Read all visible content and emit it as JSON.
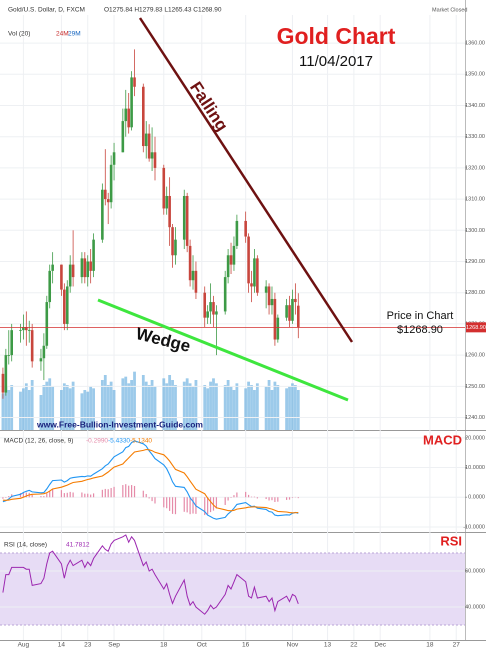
{
  "header": {
    "symbol": "Gold/U.S. Dollar, D, FXCM",
    "ohlc": "O1275.84 H1279.83 L1265.43 C1268.90",
    "status": "Market Closed",
    "volume_label": "Vol (20)",
    "volume_values": [
      "24M",
      "29M"
    ]
  },
  "annotations": {
    "title": "Gold Chart",
    "date": "11/04/2017",
    "falling": "Falling",
    "wedge": "Wedge",
    "price_label": "Price in Chart",
    "price_value": "$1268.90",
    "website": "www.Free-Bullion-Investment-Guide.com"
  },
  "chart_data": [
    {
      "type": "candlestick",
      "up_color": "#3d9a46",
      "down_color": "#c8463d",
      "grid": true,
      "xlim": [
        "2017-07-24",
        "2017-12-30"
      ],
      "x": [
        "2017-07-25",
        "2017-07-26",
        "2017-07-27",
        "2017-07-28",
        "2017-07-31",
        "2017-08-01",
        "2017-08-02",
        "2017-08-03",
        "2017-08-04",
        "2017-08-07",
        "2017-08-08",
        "2017-08-09",
        "2017-08-10",
        "2017-08-11",
        "2017-08-14",
        "2017-08-15",
        "2017-08-16",
        "2017-08-17",
        "2017-08-18",
        "2017-08-21",
        "2017-08-22",
        "2017-08-23",
        "2017-08-24",
        "2017-08-25",
        "2017-08-28",
        "2017-08-29",
        "2017-08-30",
        "2017-08-31",
        "2017-09-01",
        "2017-09-04",
        "2017-09-05",
        "2017-09-06",
        "2017-09-07",
        "2017-09-08",
        "2017-09-11",
        "2017-09-12",
        "2017-09-13",
        "2017-09-14",
        "2017-09-15",
        "2017-09-18",
        "2017-09-19",
        "2017-09-20",
        "2017-09-21",
        "2017-09-22",
        "2017-09-25",
        "2017-09-26",
        "2017-09-27",
        "2017-09-28",
        "2017-09-29",
        "2017-10-02",
        "2017-10-03",
        "2017-10-04",
        "2017-10-05",
        "2017-10-06",
        "2017-10-09",
        "2017-10-10",
        "2017-10-11",
        "2017-10-12",
        "2017-10-13",
        "2017-10-16",
        "2017-10-17",
        "2017-10-18",
        "2017-10-19",
        "2017-10-20",
        "2017-10-23",
        "2017-10-24",
        "2017-10-25",
        "2017-10-26",
        "2017-10-27",
        "2017-10-30",
        "2017-10-31",
        "2017-11-01",
        "2017-11-02",
        "2017-11-03"
      ],
      "open": [
        1254,
        1248,
        1260,
        1260,
        1268,
        1268,
        1269,
        1268,
        1268,
        1258,
        1259,
        1263,
        1277,
        1287,
        1289,
        1281,
        1270,
        1282,
        1289,
        1285,
        1291,
        1285,
        1290,
        1287,
        1297,
        1313,
        1310,
        1309,
        1321,
        1325,
        1335,
        1339,
        1333,
        1349,
        1346,
        1327,
        1331,
        1323,
        1325,
        1320,
        1307,
        1311,
        1301,
        1292,
        1297,
        1311,
        1295,
        1284,
        1287,
        1280,
        1272,
        1274,
        1277,
        1273,
        1274,
        1285,
        1292,
        1289,
        1295,
        1303,
        1298,
        1283,
        1282,
        1291,
        1280,
        1282,
        1276,
        1278,
        1265,
        1272,
        1276,
        1271,
        1278,
        1275.84
      ],
      "high": [
        1256,
        1262,
        1268,
        1270,
        1270,
        1273,
        1274,
        1271,
        1270,
        1262,
        1267,
        1279,
        1289,
        1293,
        1289,
        1283,
        1284,
        1292,
        1300,
        1293,
        1293,
        1292,
        1294,
        1299,
        1315,
        1326,
        1312,
        1324,
        1328,
        1339,
        1345,
        1344,
        1351,
        1358,
        1347,
        1335,
        1334,
        1333,
        1330,
        1321,
        1314,
        1317,
        1302,
        1301,
        1313,
        1312,
        1297,
        1292,
        1290,
        1282,
        1276,
        1283,
        1279,
        1276,
        1287,
        1294,
        1296,
        1298,
        1305,
        1306,
        1299,
        1287,
        1294,
        1292,
        1284,
        1283,
        1282,
        1280,
        1273,
        1278,
        1279,
        1281,
        1283,
        1279.83
      ],
      "low": [
        1246,
        1247,
        1257,
        1258,
        1264,
        1265,
        1263,
        1264,
        1256,
        1255,
        1252,
        1262,
        1275,
        1283,
        1279,
        1268,
        1268,
        1280,
        1282,
        1283,
        1283,
        1282,
        1283,
        1285,
        1296,
        1308,
        1302,
        1307,
        1316,
        1325,
        1330,
        1331,
        1332,
        1343,
        1325,
        1323,
        1322,
        1319,
        1316,
        1305,
        1305,
        1295,
        1288,
        1289,
        1294,
        1293,
        1282,
        1281,
        1278,
        1269,
        1270,
        1270,
        1269,
        1260,
        1273,
        1283,
        1286,
        1287,
        1294,
        1296,
        1280,
        1277,
        1280,
        1279,
        1275,
        1273,
        1273,
        1263,
        1264,
        1271,
        1269,
        1270,
        1273,
        1265.43
      ],
      "close": [
        1248,
        1260,
        1260,
        1268,
        1268,
        1269,
        1268,
        1268,
        1258,
        1259,
        1263,
        1277,
        1287,
        1289,
        1281,
        1270,
        1282,
        1289,
        1285,
        1291,
        1285,
        1290,
        1287,
        1297,
        1313,
        1310,
        1309,
        1321,
        1325,
        1335,
        1339,
        1333,
        1349,
        1346,
        1327,
        1331,
        1323,
        1325,
        1320,
        1307,
        1311,
        1301,
        1292,
        1297,
        1311,
        1295,
        1284,
        1287,
        1280,
        1272,
        1274,
        1277,
        1273,
        1274,
        1285,
        1292,
        1289,
        1295,
        1303,
        1298,
        1283,
        1282,
        1291,
        1280,
        1282,
        1276,
        1278,
        1265,
        1272,
        1276,
        1271,
        1278,
        1277,
        1268.9
      ],
      "ylim": [
        1236,
        1369
      ],
      "yticks": [
        {
          "value": 1240,
          "label": "1240.00"
        },
        {
          "value": 1250,
          "label": "1250.00"
        },
        {
          "value": 1260,
          "label": "1260.00"
        },
        {
          "value": 1270,
          "label": "1270.00"
        },
        {
          "value": 1280,
          "label": "1280.00"
        },
        {
          "value": 1290,
          "label": "1290.00"
        },
        {
          "value": 1300,
          "label": "1300.00"
        },
        {
          "value": 1310,
          "label": "1310.00"
        },
        {
          "value": 1320,
          "label": "1320.00"
        },
        {
          "value": 1330,
          "label": "1330.00"
        },
        {
          "value": 1340,
          "label": "1340.00"
        },
        {
          "value": 1350,
          "label": "1350.00"
        },
        {
          "value": 1360,
          "label": "1360.00"
        }
      ],
      "price_line": {
        "value": 1268.9,
        "label": "1268.90",
        "color": "#d32f2f"
      }
    },
    {
      "type": "bar",
      "color": "#4a9fd8",
      "values": [
        22,
        26,
        24,
        27,
        23,
        25,
        28,
        24,
        30,
        21,
        27,
        29,
        31,
        26,
        24,
        28,
        27,
        25,
        29,
        22,
        24,
        23,
        26,
        25,
        30,
        33,
        27,
        29,
        24,
        31,
        32,
        28,
        30,
        35,
        33,
        29,
        27,
        30,
        26,
        31,
        28,
        33,
        30,
        27,
        29,
        31,
        28,
        26,
        30,
        27,
        25,
        29,
        31,
        28,
        27,
        30,
        26,
        24,
        28,
        25,
        29,
        27,
        24,
        28,
        26,
        30,
        24,
        29,
        27,
        25,
        26,
        28,
        27,
        24
      ],
      "vlim": [
        0,
        60
      ]
    },
    {
      "type": "macd",
      "title": "MACD",
      "indicator_label": "MACD (12, 26, close, 9)",
      "indicator_values": [
        "-0.2990",
        "-5.4330",
        "-5.1340"
      ],
      "ylim": [
        -11.7,
        22.3
      ],
      "yticks": [
        {
          "value": 20,
          "label": "20.0000"
        },
        {
          "value": 10,
          "label": "10.0000"
        },
        {
          "value": 0,
          "label": "0.0000"
        },
        {
          "value": -10,
          "label": "-10.0000"
        }
      ],
      "histogram": {
        "color": "#e58aa8",
        "values": [
          -0.5,
          -0.2,
          0.4,
          1.0,
          1.4,
          1.6,
          1.6,
          1.5,
          0.8,
          0.4,
          0.4,
          1.3,
          2.2,
          2.8,
          2.4,
          1.4,
          1.5,
          1.8,
          1.6,
          1.6,
          1.2,
          1.2,
          0.9,
          1.3,
          2.5,
          2.8,
          2.7,
          3.1,
          3.5,
          4.1,
          4.4,
          3.9,
          4.1,
          3.8,
          2.2,
          1.1,
          -0.4,
          -1.3,
          -2.1,
          -3.4,
          -3.7,
          -4.6,
          -5.6,
          -5.7,
          -4.9,
          -5.1,
          -5.7,
          -5.5,
          -5.6,
          -6.0,
          -5.8,
          -5.0,
          -4.5,
          -3.8,
          -2.6,
          -1.1,
          -0.2,
          0.7,
          1.6,
          1.8,
          0.8,
          0.2,
          0.2,
          -0.4,
          -0.6,
          -1.1,
          -1.0,
          -1.6,
          -1.5,
          -0.9,
          -0.8,
          -0.2,
          0.1,
          -0.299
        ]
      },
      "series": [
        {
          "color": "#2196f3",
          "values": [
            -1.5,
            -1.2,
            -0.6,
            0.3,
            1.0,
            1.6,
            2.0,
            2.3,
            1.8,
            1.5,
            1.6,
            2.8,
            4.3,
            5.6,
            5.8,
            5.1,
            5.6,
            6.4,
            6.6,
            7.0,
            6.9,
            7.2,
            7.1,
            7.8,
            9.6,
            10.6,
            11.2,
            12.4,
            13.6,
            15.3,
            16.7,
            17.1,
            18.4,
            19.0,
            18.0,
            17.2,
            15.6,
            14.4,
            13.0,
            10.9,
            9.6,
            7.6,
            5.2,
            3.7,
            3.3,
            1.8,
            -0.2,
            -1.4,
            -2.9,
            -4.8,
            -6.0,
            -6.5,
            -7.1,
            -7.4,
            -6.8,
            -5.6,
            -4.8,
            -3.7,
            -2.4,
            -1.8,
            -2.5,
            -3.1,
            -3.0,
            -3.7,
            -4.1,
            -4.8,
            -5.0,
            -6.0,
            -6.2,
            -5.9,
            -6.0,
            -5.4,
            -5.1,
            -5.433
          ]
        },
        {
          "color": "#f57c00",
          "values": [
            -1.0,
            -1.04,
            -0.95,
            -0.7,
            -0.36,
            0.03,
            0.42,
            0.8,
            1.0,
            1.1,
            1.2,
            1.5,
            2.06,
            2.77,
            3.38,
            3.72,
            4.1,
            4.56,
            4.97,
            5.38,
            5.68,
            5.98,
            6.2,
            6.52,
            7.14,
            7.83,
            8.51,
            9.29,
            10.15,
            11.18,
            12.28,
            13.24,
            14.27,
            15.22,
            15.78,
            16.06,
            15.97,
            15.66,
            15.13,
            14.28,
            13.34,
            12.19,
            10.79,
            9.37,
            8.16,
            6.89,
            5.47,
            4.1,
            2.7,
            1.2,
            -0.24,
            -1.49,
            -2.61,
            -3.57,
            -4.22,
            -4.5,
            -4.56,
            -4.39,
            -3.99,
            -3.55,
            -3.34,
            -3.29,
            -3.23,
            -3.33,
            -3.48,
            -3.74,
            -3.99,
            -4.39,
            -4.75,
            -4.98,
            -5.18,
            -5.23,
            -5.2,
            -5.134
          ]
        }
      ]
    },
    {
      "type": "rsi",
      "title": "RSI",
      "indicator_label": "RSI (14, close)",
      "indicator_values": [
        "41.7812"
      ],
      "ylim": [
        21.7,
        81.1
      ],
      "band": [
        30,
        70
      ],
      "band_color": "#e7dcf5",
      "color": "#9c27b0",
      "yticks": [
        {
          "value": 60,
          "label": "60.0000"
        },
        {
          "value": 40,
          "label": "40.0000"
        }
      ],
      "values": [
        48,
        58,
        58,
        62,
        62,
        62,
        61,
        61,
        52,
        53,
        56,
        64,
        70,
        71,
        64,
        56,
        63,
        66,
        63,
        66,
        62,
        65,
        63,
        67,
        74,
        72,
        71,
        75,
        77,
        79,
        80,
        76,
        79,
        77,
        63,
        65,
        60,
        61,
        58,
        50,
        53,
        47,
        42,
        46,
        55,
        46,
        41,
        43,
        40,
        36,
        38,
        41,
        39,
        40,
        47,
        52,
        50,
        54,
        58,
        54,
        46,
        45,
        51,
        45,
        46,
        43,
        45,
        38,
        43,
        46,
        43,
        47,
        46,
        41.7812
      ],
      "xticks": [
        {
          "value": "2017-08-01",
          "label": "Aug"
        },
        {
          "value": "2017-08-14",
          "label": "14"
        },
        {
          "value": "2017-08-23",
          "label": "23"
        },
        {
          "value": "2017-09-01",
          "label": "Sep"
        },
        {
          "value": "2017-09-18",
          "label": "18"
        },
        {
          "value": "2017-10-01",
          "label": "Oct"
        },
        {
          "value": "2017-10-16",
          "label": "16"
        },
        {
          "value": "2017-11-01",
          "label": "Nov"
        },
        {
          "value": "2017-11-13",
          "label": "13"
        },
        {
          "value": "2017-11-22",
          "label": "22"
        },
        {
          "value": "2017-12-01",
          "label": "Dec"
        },
        {
          "value": "2017-12-18",
          "label": "18"
        },
        {
          "value": "2017-12-27",
          "label": "27"
        }
      ]
    }
  ]
}
